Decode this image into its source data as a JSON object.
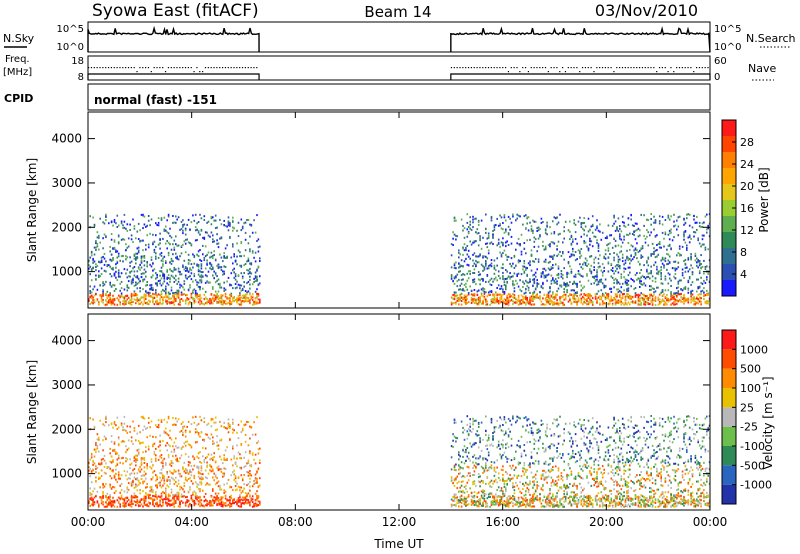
{
  "header": {
    "title": "Syowa East (fitACF)",
    "beam": "Beam 14",
    "date": "03/Nov/2010"
  },
  "status_panels": {
    "nsky_label": "N.Sky",
    "nsearch_label": "N.Search",
    "noise_ticks": [
      "10^5",
      "10^0"
    ],
    "noise_ticks_right": [
      "10^5",
      "10^0"
    ],
    "freq_label_1": "Freq.",
    "freq_label_2": "[MHz]",
    "freq_ticks": [
      "18",
      "8"
    ],
    "nave_label": "Nave",
    "nave_ticks": [
      "60",
      "0"
    ],
    "cpid_label": "CPID",
    "cpid_value": "normal (fast) -151"
  },
  "axes": {
    "ylabel": "Slant Range [km]",
    "yticks": [
      "4000",
      "3000",
      "2000",
      "1000"
    ],
    "xlabel": "Time UT",
    "xticks": [
      "00:00",
      "04:00",
      "08:00",
      "12:00",
      "16:00",
      "20:00",
      "00:00"
    ]
  },
  "colorbars": {
    "power": {
      "label": "Power [dB]",
      "ticks": [
        "28",
        "24",
        "20",
        "16",
        "12",
        "8",
        "4"
      ],
      "colors": [
        "#1a1aff",
        "#2b4fb3",
        "#2f6f8f",
        "#2e8b57",
        "#5fae4f",
        "#9acd32",
        "#e6c619",
        "#ffa500",
        "#ff7f00",
        "#ff4500",
        "#ff1a1a"
      ]
    },
    "velocity": {
      "label": "Velocity [m s⁻¹]",
      "ticks": [
        "1000",
        "500",
        "100",
        "25",
        "-25",
        "-100",
        "-500",
        "-1000"
      ],
      "colors": [
        "#2233aa",
        "#2a66c0",
        "#2e8b57",
        "#6cbf4a",
        "#b8b8b8",
        "#e8c100",
        "#ff8c00",
        "#ff4d00",
        "#ff1a1a"
      ]
    }
  },
  "chart_data": {
    "type": "heatmap",
    "x_unit": "hours UT",
    "xlim": [
      0,
      24
    ],
    "ylim": [
      180,
      4600
    ],
    "data_coverage_hours": [
      [
        0.0,
        6.6
      ],
      [
        14.0,
        24.0
      ]
    ],
    "series": [
      {
        "name": "Power",
        "unit": "dB"
      },
      {
        "name": "Velocity",
        "unit": "m s-1"
      }
    ]
  }
}
